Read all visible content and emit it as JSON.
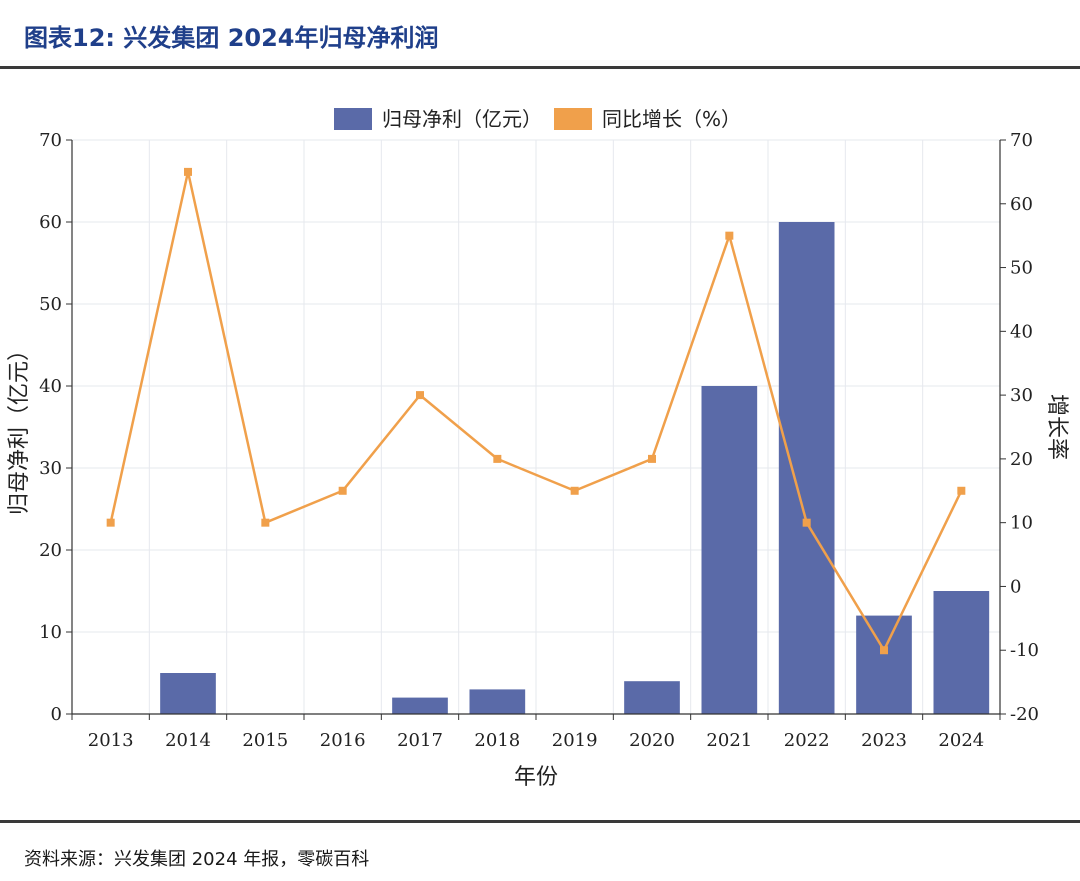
{
  "figure": {
    "title": "图表12:  兴发集团 2024年归母净利润",
    "source": "资料来源：兴发集团 2024 年报，零碳百科"
  },
  "chart_data": {
    "type": "bar",
    "categories": [
      "2013",
      "2014",
      "2015",
      "2016",
      "2017",
      "2018",
      "2019",
      "2020",
      "2021",
      "2022",
      "2023",
      "2024"
    ],
    "series": [
      {
        "name": "归母净利（亿元）",
        "kind": "bar",
        "axis": "left",
        "color": "#5a6aa8",
        "values": [
          0,
          5,
          0,
          0,
          2,
          3,
          0,
          4,
          40,
          60,
          12,
          15
        ]
      },
      {
        "name": "同比增长（%）",
        "kind": "line",
        "axis": "right",
        "color": "#f0a04b",
        "values": [
          10,
          65,
          10,
          15,
          30,
          20,
          15,
          20,
          55,
          10,
          -10,
          15
        ]
      }
    ],
    "xlabel": "年份",
    "ylabel": "归母净利（亿元）",
    "y2label": "增长率",
    "ylim": [
      0,
      70
    ],
    "yticks": [
      0,
      10,
      20,
      30,
      40,
      50,
      60,
      70
    ],
    "y2lim": [
      -20,
      70
    ],
    "y2ticks": [
      -20,
      -10,
      0,
      10,
      20,
      30,
      40,
      50,
      60,
      70
    ],
    "grid": true,
    "legend": "top-center"
  }
}
